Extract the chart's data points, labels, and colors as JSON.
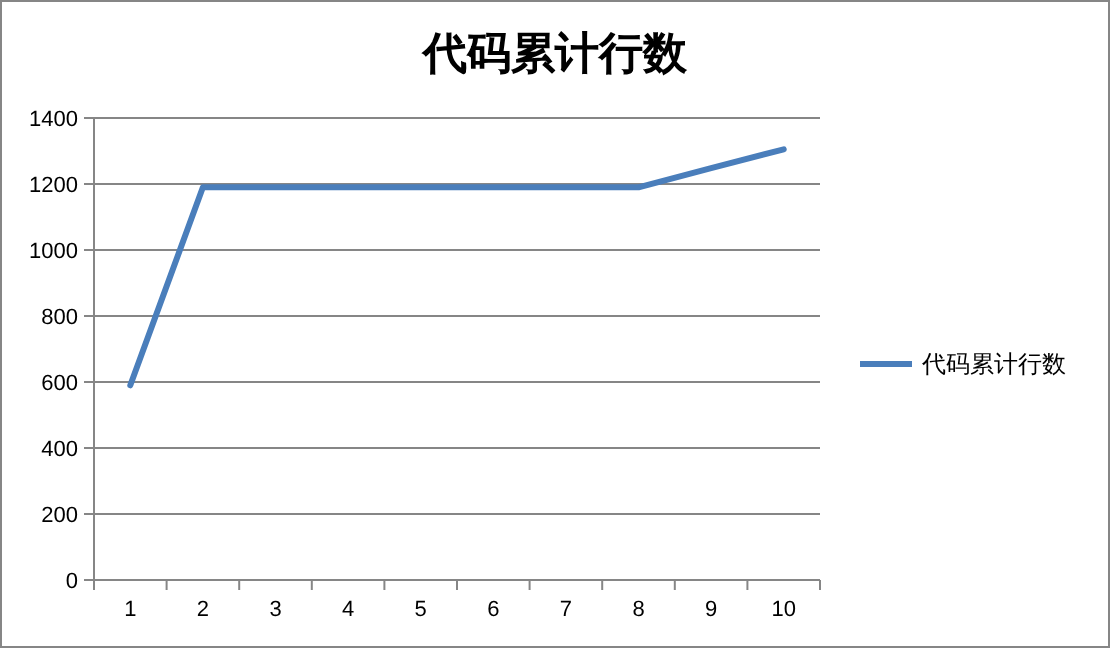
{
  "chart_data": {
    "type": "line",
    "title": "代码累计行数",
    "categories": [
      "1",
      "2",
      "3",
      "4",
      "5",
      "6",
      "7",
      "8",
      "9",
      "10"
    ],
    "series": [
      {
        "name": "代码累计行数",
        "color": "#4a7ebb",
        "values": [
          590,
          1190,
          1190,
          1190,
          1190,
          1190,
          1190,
          1190,
          1248,
          1305
        ]
      }
    ],
    "ylim": [
      0,
      1400
    ],
    "yticks": [
      0,
      200,
      400,
      600,
      800,
      1000,
      1200,
      1400
    ],
    "grid": "y",
    "legend": "right",
    "marker": "none",
    "line_style": "solid"
  }
}
